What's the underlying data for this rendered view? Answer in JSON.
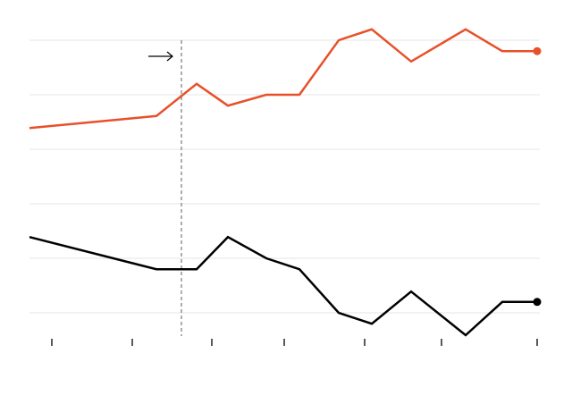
{
  "chart_data": {
    "type": "line",
    "x": [
      0,
      14.2,
      18.7,
      22.2,
      26.5,
      30.2,
      34.6,
      38.3,
      42.7,
      48.8,
      52.9,
      56.8
    ],
    "series": [
      {
        "color": "#e8502a",
        "values": [
          3.39,
          3.61,
          4.2,
          3.8,
          4.0,
          4.0,
          5.0,
          5.2,
          4.61,
          5.2,
          4.8,
          4.8
        ]
      },
      {
        "color": "#000000",
        "values": [
          1.39,
          0.8,
          0.8,
          1.39,
          1.0,
          0.8,
          0.0,
          -0.2,
          0.39,
          -0.41,
          0.2,
          0.2
        ]
      }
    ],
    "xlim": [
      0,
      56.8
    ],
    "ylim": [
      -0.5,
      5.5
    ],
    "xticks": [
      2.5,
      11.5,
      20.4,
      28.5,
      37.5,
      46.1,
      56.8
    ],
    "yticks": [
      0,
      1,
      2,
      3,
      4,
      5
    ],
    "marker_x": 17.0,
    "grid": true
  }
}
